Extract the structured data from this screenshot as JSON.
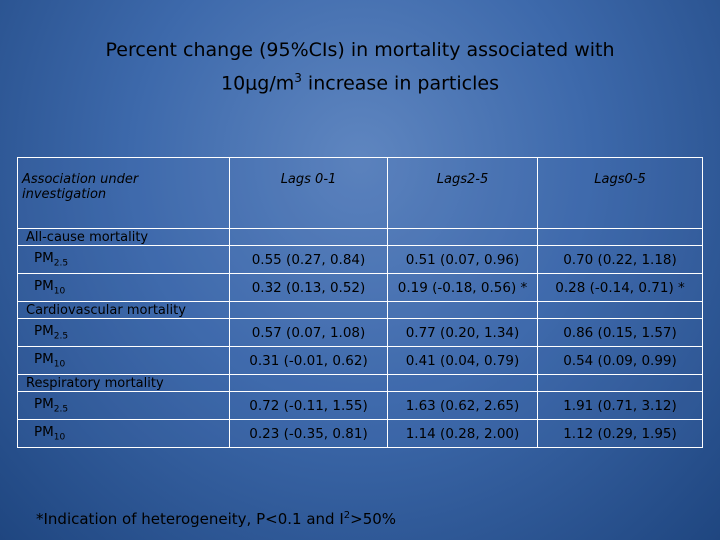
{
  "title": {
    "line1": "Percent change (95%CIs) in mortality associated with",
    "line2_pre": "10μg/m",
    "line2_sup": "3",
    "line2_post": " increase in particles"
  },
  "table": {
    "headers": [
      "Association under investigation",
      "Lags 0-1",
      "Lags2-5",
      "Lags0-5"
    ],
    "sections": [
      {
        "label": "All-cause mortality",
        "rows": [
          {
            "pm": "PM",
            "sub": "2.5",
            "values": [
              "0.55 (0.27, 0.84)",
              "0.51 (0.07, 0.96)",
              "0.70 (0.22, 1.18)"
            ]
          },
          {
            "pm": "PM",
            "sub": "10",
            "values": [
              "0.32 (0.13, 0.52)",
              "0.19 (-0.18, 0.56) *",
              "0.28 (-0.14, 0.71) *"
            ]
          }
        ]
      },
      {
        "label": "Cardiovascular mortality",
        "rows": [
          {
            "pm": "PM",
            "sub": "2.5",
            "values": [
              "0.57 (0.07, 1.08)",
              "0.77 (0.20, 1.34)",
              "0.86 (0.15, 1.57)"
            ]
          },
          {
            "pm": "PM",
            "sub": "10",
            "values": [
              "0.31 (-0.01, 0.62)",
              "0.41 (0.04, 0.79)",
              "0.54 (0.09, 0.99)"
            ]
          }
        ]
      },
      {
        "label": "Respiratory mortality",
        "rows": [
          {
            "pm": "PM",
            "sub": "2.5",
            "values": [
              "0.72 (-0.11, 1.55)",
              "1.63 (0.62, 2.65)",
              "1.91 (0.71, 3.12)"
            ]
          },
          {
            "pm": "PM",
            "sub": "10",
            "values": [
              "0.23 (-0.35, 0.81)",
              "1.14 (0.28, 2.00)",
              "1.12 (0.29, 1.95)"
            ]
          }
        ]
      }
    ]
  },
  "footnote": {
    "pre": "*Indication of heterogeneity, P<0.1 and I",
    "sup": "2",
    "post": ">50%"
  }
}
